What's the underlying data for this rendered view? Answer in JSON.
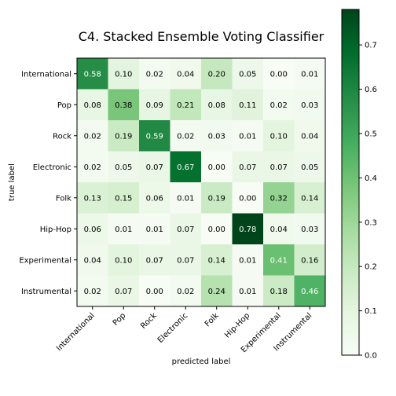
{
  "chart_data": {
    "type": "heatmap",
    "title": "C4. Stacked Ensemble Voting Classifier",
    "xlabel": "predicted label",
    "ylabel": "true label",
    "x_categories": [
      "International",
      "Pop",
      "Rock",
      "Electronic",
      "Folk",
      "Hip-Hop",
      "Experimental",
      "Instrumental"
    ],
    "y_categories": [
      "International",
      "Pop",
      "Rock",
      "Electronic",
      "Folk",
      "Hip-Hop",
      "Experimental",
      "Instrumental"
    ],
    "values": [
      [
        0.58,
        0.1,
        0.02,
        0.04,
        0.2,
        0.05,
        0.0,
        0.01
      ],
      [
        0.08,
        0.38,
        0.09,
        0.21,
        0.08,
        0.11,
        0.02,
        0.03
      ],
      [
        0.02,
        0.19,
        0.59,
        0.02,
        0.03,
        0.01,
        0.1,
        0.04
      ],
      [
        0.02,
        0.05,
        0.07,
        0.67,
        0.0,
        0.07,
        0.07,
        0.05
      ],
      [
        0.13,
        0.15,
        0.06,
        0.01,
        0.19,
        0.0,
        0.32,
        0.14
      ],
      [
        0.06,
        0.01,
        0.01,
        0.07,
        0.0,
        0.78,
        0.04,
        0.03
      ],
      [
        0.04,
        0.1,
        0.07,
        0.07,
        0.14,
        0.01,
        0.41,
        0.16
      ],
      [
        0.02,
        0.07,
        0.0,
        0.02,
        0.24,
        0.01,
        0.18,
        0.46
      ]
    ],
    "colormap": "Greens",
    "color_range": [
      0.0,
      0.78
    ],
    "colorbar_ticks": [
      0.0,
      0.1,
      0.2,
      0.3,
      0.4,
      0.5,
      0.6,
      0.7
    ],
    "colorbar_tick_labels": [
      "0.0",
      "0.1",
      "0.2",
      "0.3",
      "0.4",
      "0.5",
      "0.6",
      "0.7"
    ],
    "text_threshold": 0.39,
    "grid": false,
    "legend": "colorbar-right"
  }
}
